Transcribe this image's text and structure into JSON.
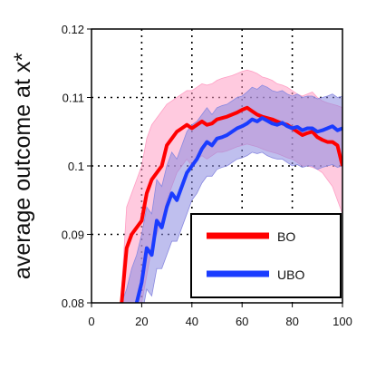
{
  "chart_data": {
    "type": "line",
    "title": "",
    "xlabel": "",
    "ylabel": "average outcome at x*",
    "xlim": [
      0,
      100
    ],
    "ylim": [
      0.08,
      0.12
    ],
    "xticks": [
      0,
      20,
      40,
      60,
      80,
      100
    ],
    "yticks": [
      0.08,
      0.09,
      0.1,
      0.11,
      0.12
    ],
    "xtick_labels": [
      "0",
      "20",
      "40",
      "60",
      "80",
      "100"
    ],
    "ytick_labels": [
      "0.08",
      "0.09",
      "0.1",
      "0.11",
      "0.12"
    ],
    "grid": true,
    "legend_position": "bottom-right",
    "x": [
      12,
      14,
      16,
      18,
      20,
      22,
      24,
      26,
      28,
      30,
      32,
      34,
      36,
      38,
      40,
      42,
      44,
      46,
      48,
      50,
      52,
      54,
      56,
      58,
      60,
      62,
      64,
      66,
      68,
      70,
      72,
      74,
      76,
      78,
      80,
      82,
      84,
      86,
      88,
      90,
      92,
      94,
      96,
      98,
      100
    ],
    "series": [
      {
        "name": "BO",
        "color": "#ff0000",
        "band_color": "#ff9ec4",
        "values": [
          0.08,
          0.088,
          0.09,
          0.091,
          0.092,
          0.096,
          0.098,
          0.099,
          0.1,
          0.103,
          0.104,
          0.105,
          0.1055,
          0.106,
          0.1055,
          0.106,
          0.1065,
          0.106,
          0.1062,
          0.1068,
          0.107,
          0.1072,
          0.1075,
          0.1078,
          0.1082,
          0.1085,
          0.108,
          0.1075,
          0.1072,
          0.107,
          0.1068,
          0.1065,
          0.1062,
          0.106,
          0.1055,
          0.105,
          0.1045,
          0.1048,
          0.105,
          0.1042,
          0.1038,
          0.1035,
          0.1035,
          0.103,
          0.1
        ],
        "lower": [
          0.08,
          0.08,
          0.08,
          0.08,
          0.08,
          0.084,
          0.088,
          0.09,
          0.092,
          0.095,
          0.097,
          0.099,
          0.1,
          0.101,
          0.1,
          0.101,
          0.1015,
          0.101,
          0.1015,
          0.102,
          0.102,
          0.1022,
          0.1025,
          0.1028,
          0.103,
          0.1032,
          0.103,
          0.1028,
          0.1025,
          0.1022,
          0.102,
          0.1018,
          0.1015,
          0.1012,
          0.101,
          0.1005,
          0.1,
          0.1,
          0.0998,
          0.0995,
          0.099,
          0.098,
          0.097,
          0.095,
          0.093
        ],
        "upper": [
          0.082,
          0.094,
          0.096,
          0.098,
          0.1,
          0.104,
          0.106,
          0.107,
          0.108,
          0.109,
          0.1095,
          0.11,
          0.1105,
          0.111,
          0.111,
          0.1115,
          0.112,
          0.1118,
          0.112,
          0.1125,
          0.1128,
          0.113,
          0.1132,
          0.1135,
          0.1138,
          0.114,
          0.1138,
          0.1135,
          0.113,
          0.1128,
          0.1125,
          0.112,
          0.1118,
          0.1115,
          0.111,
          0.1105,
          0.1102,
          0.1105,
          0.1108,
          0.11,
          0.1095,
          0.1092,
          0.109,
          0.1088,
          0.1085
        ]
      },
      {
        "name": "UBO",
        "color": "#1a3cff",
        "band_color": "#8a8ae0",
        "values": [
          0.075,
          0.077,
          0.079,
          0.08,
          0.083,
          0.088,
          0.087,
          0.092,
          0.091,
          0.094,
          0.096,
          0.095,
          0.097,
          0.099,
          0.1,
          0.101,
          0.1025,
          0.1035,
          0.103,
          0.104,
          0.1042,
          0.1045,
          0.105,
          0.1055,
          0.1058,
          0.1062,
          0.1068,
          0.1065,
          0.107,
          0.1066,
          0.1062,
          0.106,
          0.1063,
          0.1058,
          0.1055,
          0.1057,
          0.1052,
          0.1055,
          0.1055,
          0.105,
          0.1052,
          0.1055,
          0.1058,
          0.1052,
          0.1055
        ],
        "lower": [
          0.07,
          0.072,
          0.074,
          0.075,
          0.078,
          0.082,
          0.081,
          0.085,
          0.085,
          0.087,
          0.089,
          0.089,
          0.091,
          0.093,
          0.095,
          0.096,
          0.0975,
          0.0985,
          0.0985,
          0.0995,
          0.0998,
          0.1,
          0.1005,
          0.101,
          0.1012,
          0.1015,
          0.102,
          0.1018,
          0.102,
          0.1015,
          0.1012,
          0.101,
          0.101,
          0.1005,
          0.1,
          0.1002,
          0.0998,
          0.1,
          0.1,
          0.0995,
          0.0998,
          0.1,
          0.1002,
          0.0998,
          0.1
        ],
        "upper": [
          0.08,
          0.082,
          0.085,
          0.087,
          0.09,
          0.094,
          0.093,
          0.098,
          0.097,
          0.1,
          0.102,
          0.101,
          0.103,
          0.105,
          0.106,
          0.1065,
          0.1075,
          0.1085,
          0.1075,
          0.1085,
          0.1088,
          0.109,
          0.1095,
          0.11,
          0.1102,
          0.1108,
          0.1115,
          0.1112,
          0.1118,
          0.1115,
          0.111,
          0.1108,
          0.111,
          0.1105,
          0.1102,
          0.1105,
          0.11,
          0.1102,
          0.1102,
          0.1098,
          0.11,
          0.1102,
          0.1105,
          0.11,
          0.1102
        ]
      }
    ]
  }
}
